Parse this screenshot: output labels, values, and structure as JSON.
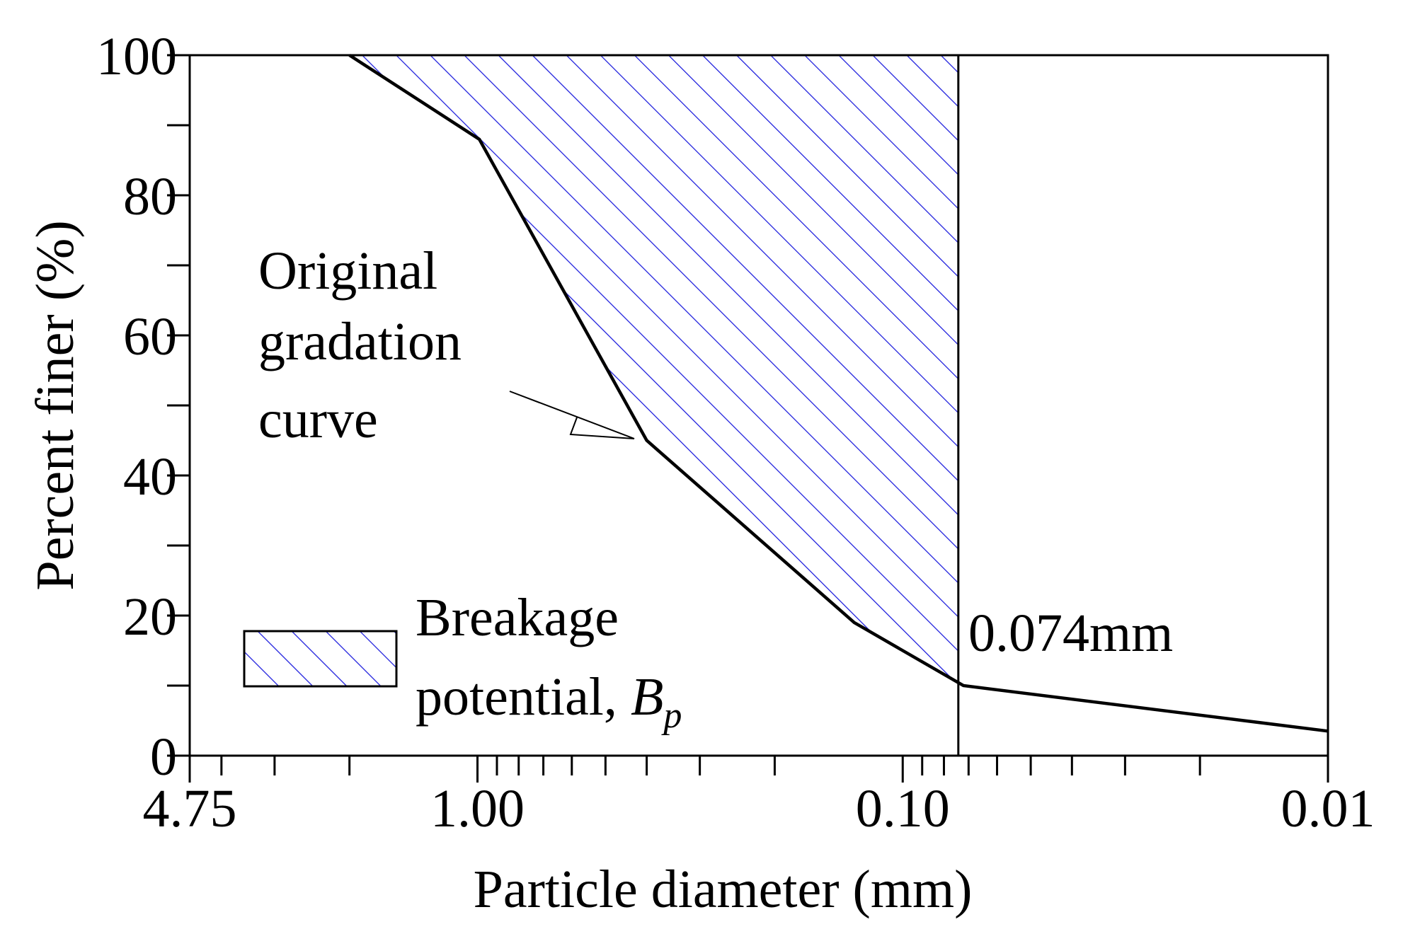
{
  "chart_data": {
    "type": "line",
    "x_scale": "log",
    "x_reversed": true,
    "xlabel": "Particle diameter (mm)",
    "ylabel": "Percent finer (%)",
    "xlim": [
      4.75,
      0.01
    ],
    "ylim": [
      0,
      100
    ],
    "x_tick_labels": [
      "4.75",
      "1.00",
      "0.10",
      "0.01"
    ],
    "x_tick_values": [
      4.75,
      1.0,
      0.1,
      0.01
    ],
    "y_tick_labels": [
      "0",
      "20",
      "40",
      "60",
      "80",
      "100"
    ],
    "y_tick_values": [
      0,
      20,
      40,
      60,
      80,
      100
    ],
    "series": [
      {
        "x": [
          2.0,
          0.99,
          0.4,
          0.13,
          0.072,
          0.01
        ],
        "y": [
          100,
          88,
          45,
          19,
          10,
          3.5
        ]
      }
    ],
    "boundary_line": {
      "x": 0.074,
      "label": "0.074mm"
    },
    "shaded_region": {
      "name": "Breakage potential, B_p",
      "between": "original gradation curve and 100% line, for diameters >= 0.074 mm"
    },
    "annotations": {
      "curve_label": [
        "Original",
        "gradation",
        "curve"
      ],
      "legend_label_line1": "Breakage",
      "legend_label_line2": "potential, ",
      "legend_symbol_main": "B",
      "legend_symbol_sub": "p"
    },
    "colors": {
      "hatch": "#1a1adc",
      "curve": "#000000"
    },
    "grid": false
  }
}
